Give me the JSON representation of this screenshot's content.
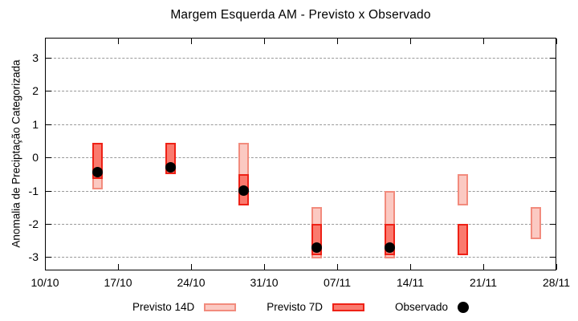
{
  "chart_data": {
    "type": "bar",
    "title": "Margem Esquerda AM - Previsto x Observado",
    "ylabel": "Anomalia de Preciptação Categorizada",
    "xlabel": "",
    "ylim": [
      -3.4,
      3.6
    ],
    "yticks": [
      3,
      2,
      1,
      0,
      -1,
      -2,
      -3
    ],
    "xticks": [
      {
        "day": 0,
        "label": "10/10"
      },
      {
        "day": 7,
        "label": "17/10"
      },
      {
        "day": 14,
        "label": "24/10"
      },
      {
        "day": 21,
        "label": "31/10"
      },
      {
        "day": 28,
        "label": "07/11"
      },
      {
        "day": 35,
        "label": "14/11"
      },
      {
        "day": 42,
        "label": "21/11"
      },
      {
        "day": 49,
        "label": "28/11"
      }
    ],
    "x_total_days": 49,
    "grid": true,
    "legend_position": "bottom",
    "series": [
      {
        "name": "Previsto 14D",
        "type": "range-bar",
        "fill": "#fbc9c2",
        "border": "#f28b7d"
      },
      {
        "name": "Previsto 7D",
        "type": "range-bar",
        "fill": "#fa7a6e",
        "border": "#ee2116"
      },
      {
        "name": "Observado",
        "type": "point",
        "color": "#000000"
      }
    ],
    "groups": [
      {
        "date": "15/10",
        "day": 5,
        "previsto_14d": [
          0.45,
          -0.95
        ],
        "previsto_7d": [
          0.45,
          -0.65
        ],
        "observado": -0.45
      },
      {
        "date": "22/10",
        "day": 12,
        "previsto_14d": [
          0.45,
          -0.5
        ],
        "previsto_7d": [
          0.45,
          -0.5
        ],
        "observado": -0.3
      },
      {
        "date": "29/10",
        "day": 19,
        "previsto_14d": [
          0.45,
          -1.45
        ],
        "previsto_7d": [
          -0.5,
          -1.45
        ],
        "observado": -1.0
      },
      {
        "date": "05/11",
        "day": 26,
        "previsto_14d": [
          -1.5,
          -3.05
        ],
        "previsto_7d": [
          -2.0,
          -2.95
        ],
        "observado": -2.7
      },
      {
        "date": "12/11",
        "day": 33,
        "previsto_14d": [
          -1.0,
          -3.05
        ],
        "previsto_7d": [
          -2.0,
          -2.95
        ],
        "observado": -2.7
      },
      {
        "date": "19/11",
        "day": 40,
        "previsto_14d": [
          -0.5,
          -1.45
        ],
        "previsto_7d": [
          -2.0,
          -2.95
        ],
        "observado": null
      },
      {
        "date": "26/11",
        "day": 47,
        "previsto_14d": [
          -1.5,
          -2.45
        ],
        "previsto_7d": null,
        "observado": null
      }
    ],
    "frame_color": "#000000",
    "grid_color": "#999999"
  }
}
